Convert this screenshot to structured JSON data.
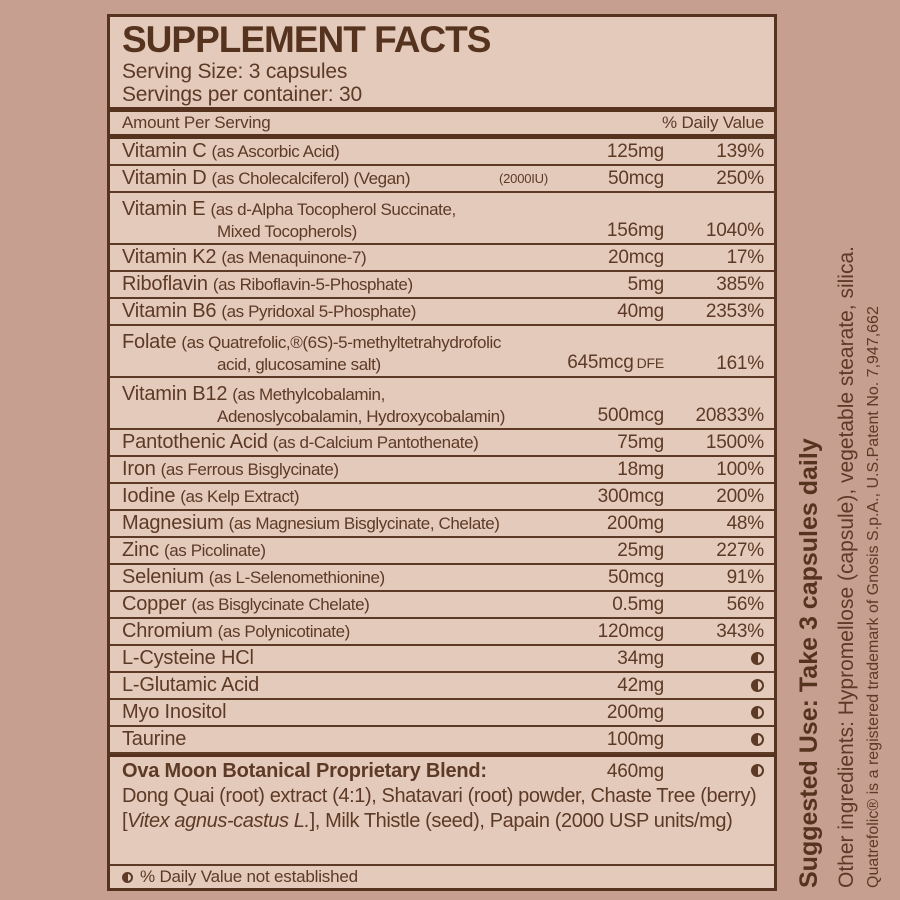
{
  "colors": {
    "bg": "#c79f90",
    "panel": "#e4cabb",
    "brown": "#5d3a26",
    "brown-dark": "#56331f"
  },
  "header": {
    "title": "SUPPLEMENT FACTS",
    "serving_size": "Serving Size: 3 capsules",
    "servings": "Servings per container: 30"
  },
  "columns": {
    "amount": "Amount Per Serving",
    "dv": "% Daily Value"
  },
  "rows": [
    {
      "name": "Vitamin C",
      "detail": "(as Ascorbic Acid)",
      "amount": "125mg",
      "dv": "139%"
    },
    {
      "name": "Vitamin D",
      "detail": "(as Cholecalciferol) (Vegan)",
      "note": "(2000IU)",
      "amount": "50mcg",
      "dv": "250%"
    },
    {
      "name": "Vitamin E",
      "detail": "(as d-Alpha Tocopherol Succinate,",
      "detail2": "Mixed Tocopherols)",
      "amount": "156mg",
      "dv": "1040%"
    },
    {
      "name": "Vitamin K2",
      "detail": "(as Menaquinone-7)",
      "amount": "20mcg",
      "dv": "17%"
    },
    {
      "name": "Riboflavin",
      "detail": "(as Riboflavin-5-Phosphate)",
      "amount": "5mg",
      "dv": "385%"
    },
    {
      "name": "Vitamin B6",
      "detail": "(as Pyridoxal 5-Phosphate)",
      "amount": "40mg",
      "dv": "2353%"
    },
    {
      "name": "Folate",
      "detail": "(as Quatrefolic,®(6S)-5-methyltetrahydrofolic",
      "detail2": "acid, glucosamine salt)",
      "amount": "645mcg",
      "amount_suffix": "DFE",
      "dv": "161%"
    },
    {
      "name": "Vitamin B12",
      "detail": "(as Methylcobalamin,",
      "detail2": "Adenoslycobalamin, Hydroxycobalamin)",
      "amount": "500mcg",
      "dv": "20833%"
    },
    {
      "name": "Pantothenic Acid",
      "detail": "(as d-Calcium Pantothenate)",
      "amount": "75mg",
      "dv": "1500%"
    },
    {
      "name": "Iron",
      "detail": "(as Ferrous Bisglycinate)",
      "amount": "18mg",
      "dv": "100%"
    },
    {
      "name": "Iodine",
      "detail": "(as Kelp Extract)",
      "amount": "300mcg",
      "dv": "200%"
    },
    {
      "name": "Magnesium",
      "detail": "(as Magnesium Bisglycinate, Chelate)",
      "amount": "200mg",
      "dv": "48%"
    },
    {
      "name": "Zinc",
      "detail": "(as Picolinate)",
      "amount": "25mg",
      "dv": "227%"
    },
    {
      "name": "Selenium",
      "detail": "(as L-Selenomethionine)",
      "amount": "50mcg",
      "dv": "91%"
    },
    {
      "name": "Copper",
      "detail": "(as Bisglycinate Chelate)",
      "amount": "0.5mg",
      "dv": "56%"
    },
    {
      "name": "Chromium",
      "detail": "(as Polynicotinate)",
      "amount": "120mcg",
      "dv": "343%"
    },
    {
      "name": "L-Cysteine HCl",
      "amount": "34mg",
      "dv_symbol": true
    },
    {
      "name": "L-Glutamic Acid",
      "amount": "42mg",
      "dv_symbol": true
    },
    {
      "name": "Myo Inositol",
      "amount": "200mg",
      "dv_symbol": true
    },
    {
      "name": "Taurine",
      "amount": "100mg",
      "dv_symbol": true
    }
  ],
  "blend": {
    "title": "Ova Moon Botanical Proprietary Blend:",
    "amount": "460mg",
    "desc_pre": "Dong Quai (root) extract (4:1), Shatavari (root) powder, Chaste Tree (berry)[",
    "desc_italic": "Vitex agnus-castus L.",
    "desc_post": "], Milk Thistle (seed), Papain (2000 USP units/mg)"
  },
  "footnote": "% Daily Value not established",
  "side_text": {
    "suggested_use": "Suggested Use: Take 3 capsules daily",
    "other_ingredients": "Other ingredients:  Hypromellose (capsule), vegetable stearate, silica.",
    "trademark": "Quatrefolic® is a registered trademark of Gnosis S.p.A., U.S.Patent No. 7,947,662"
  }
}
